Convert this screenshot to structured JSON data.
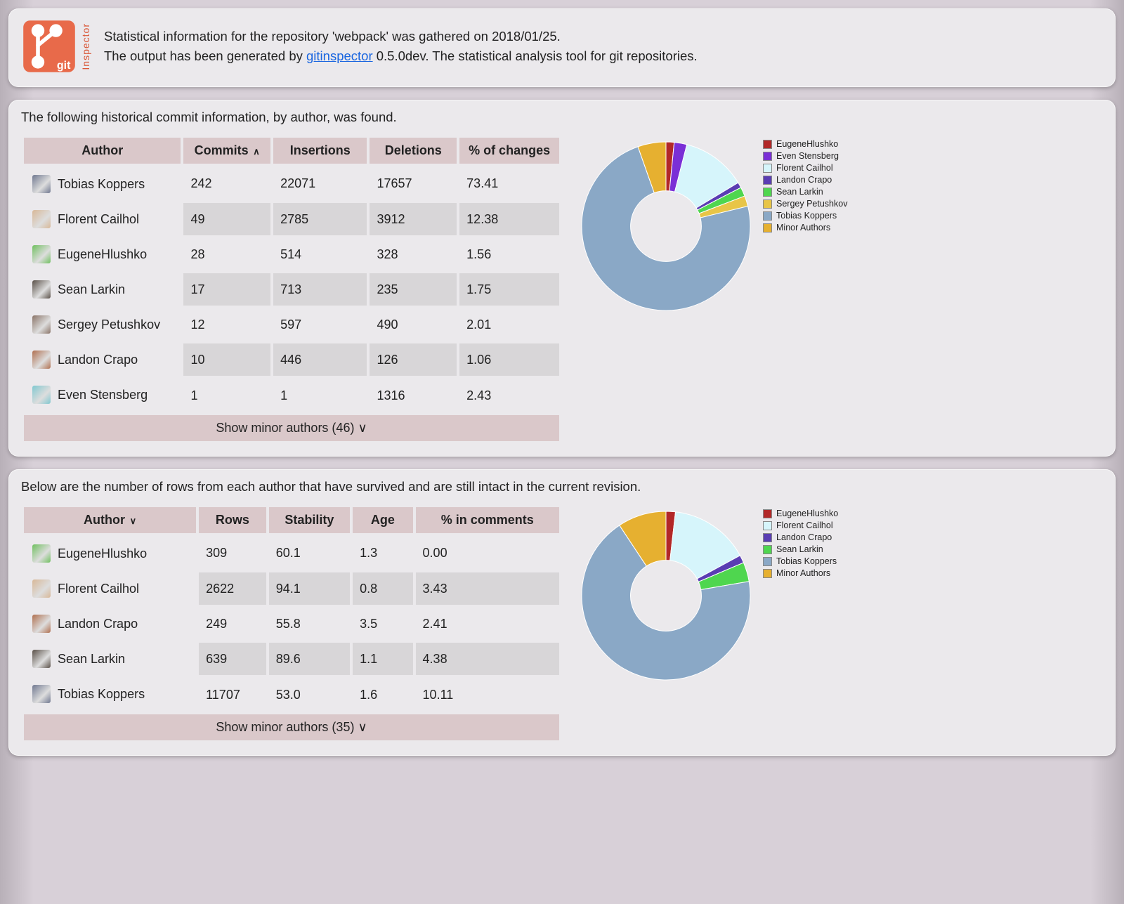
{
  "header": {
    "line1": "Statistical information for the repository 'webpack' was gathered on 2018/01/25.",
    "line2a": "The output has been generated by ",
    "link": "gitinspector",
    "line2b": " 0.5.0dev. The statistical analysis tool for git repositories.",
    "logo_git": "git",
    "logo_inspector": "Inspector",
    "logo_bg": "#e86a4a",
    "logo_fg": "#ffffff"
  },
  "colors": {
    "panel_bg": "#ebe9ec",
    "th_bg": "#dac8ca",
    "row_even": "#d8d6d8",
    "link": "#1a66e0"
  },
  "avatars": {
    "Tobias Koppers": "#707890",
    "Florent Cailhol": "#d8b898",
    "EugeneHlushko": "#70c060",
    "Sean Larkin": "#5a5048",
    "Sergey Petushkov": "#8a7468",
    "Landon Crapo": "#b07050",
    "Even Stensberg": "#80c8d0"
  },
  "section1": {
    "desc": "The following historical commit information, by author, was found.",
    "columns": [
      "Author",
      "Commits",
      "Insertions",
      "Deletions",
      "% of changes"
    ],
    "sort_col": 1,
    "sort_dir": "∧",
    "rows": [
      {
        "author": "Tobias Koppers",
        "cells": [
          "242",
          "22071",
          "17657",
          "73.41"
        ]
      },
      {
        "author": "Florent Cailhol",
        "cells": [
          "49",
          "2785",
          "3912",
          "12.38"
        ]
      },
      {
        "author": "EugeneHlushko",
        "cells": [
          "28",
          "514",
          "328",
          "1.56"
        ]
      },
      {
        "author": "Sean Larkin",
        "cells": [
          "17",
          "713",
          "235",
          "1.75"
        ]
      },
      {
        "author": "Sergey Petushkov",
        "cells": [
          "12",
          "597",
          "490",
          "2.01"
        ]
      },
      {
        "author": "Landon Crapo",
        "cells": [
          "10",
          "446",
          "126",
          "1.06"
        ]
      },
      {
        "author": "Even Stensberg",
        "cells": [
          "1",
          "1",
          "1316",
          "2.43"
        ]
      }
    ],
    "footer": "Show minor authors (46) ∨",
    "chart": {
      "type": "donut",
      "inner_radius": 0.42,
      "outer_radius": 1.0,
      "start_angle_deg": -90,
      "slices": [
        {
          "label": "EugeneHlushko",
          "value": 1.56,
          "color": "#b22828"
        },
        {
          "label": "Even Stensberg",
          "value": 2.43,
          "color": "#7a2fd6"
        },
        {
          "label": "Florent Cailhol",
          "value": 12.38,
          "color": "#d6f5fb"
        },
        {
          "label": "Landon Crapo",
          "value": 1.06,
          "color": "#5a3db3"
        },
        {
          "label": "Sean Larkin",
          "value": 1.75,
          "color": "#4fd64f"
        },
        {
          "label": "Sergey Petushkov",
          "value": 2.01,
          "color": "#e8c547"
        },
        {
          "label": "Tobias Koppers",
          "value": 73.41,
          "color": "#8aa8c6"
        },
        {
          "label": "Minor Authors",
          "value": 5.4,
          "color": "#e6b030"
        }
      ]
    }
  },
  "section2": {
    "desc": "Below are the number of rows from each author that have survived and are still intact in the current revision.",
    "columns": [
      "Author",
      "Rows",
      "Stability",
      "Age",
      "% in comments"
    ],
    "sort_col": 0,
    "sort_dir": "∨",
    "rows": [
      {
        "author": "EugeneHlushko",
        "cells": [
          "309",
          "60.1",
          "1.3",
          "0.00"
        ]
      },
      {
        "author": "Florent Cailhol",
        "cells": [
          "2622",
          "94.1",
          "0.8",
          "3.43"
        ]
      },
      {
        "author": "Landon Crapo",
        "cells": [
          "249",
          "55.8",
          "3.5",
          "2.41"
        ]
      },
      {
        "author": "Sean Larkin",
        "cells": [
          "639",
          "89.6",
          "1.1",
          "4.38"
        ]
      },
      {
        "author": "Tobias Koppers",
        "cells": [
          "11707",
          "53.0",
          "1.6",
          "10.11"
        ]
      }
    ],
    "footer": "Show minor authors (35) ∨",
    "chart": {
      "type": "donut",
      "inner_radius": 0.42,
      "outer_radius": 1.0,
      "start_angle_deg": -90,
      "slices": [
        {
          "label": "EugeneHlushko",
          "value": 1.8,
          "color": "#b22828"
        },
        {
          "label": "Florent Cailhol",
          "value": 15.3,
          "color": "#d6f5fb"
        },
        {
          "label": "Landon Crapo",
          "value": 1.5,
          "color": "#5a3db3"
        },
        {
          "label": "Sean Larkin",
          "value": 3.7,
          "color": "#4fd64f"
        },
        {
          "label": "Tobias Koppers",
          "value": 68.4,
          "color": "#8aa8c6"
        },
        {
          "label": "Minor Authors",
          "value": 9.3,
          "color": "#e6b030"
        }
      ]
    }
  },
  "col_widths": {
    "s1": [
      "230px",
      "130px",
      "140px",
      "130px",
      "150px"
    ],
    "s2": [
      "250px",
      "100px",
      "120px",
      "90px",
      "210px"
    ]
  }
}
